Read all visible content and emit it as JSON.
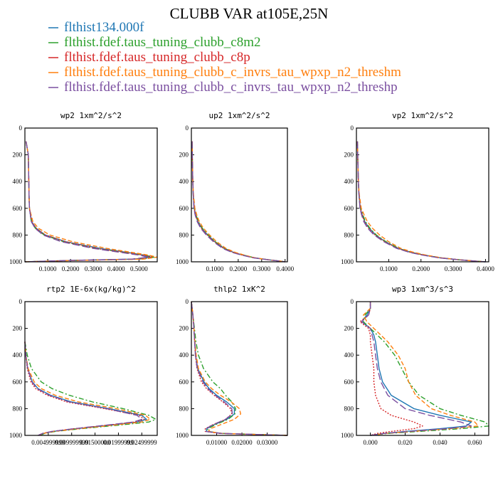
{
  "figure": {
    "title": "CLUBB VAR at105E,25N"
  },
  "legend": [
    {
      "label": "flthist134.000f",
      "color": "#1f77b4",
      "dash": "solid"
    },
    {
      "label": "flthist.fdef.taus_tuning_clubb_c8m2",
      "color": "#2ca02c",
      "dash": "dashdot"
    },
    {
      "label": "flthist.fdef.taus_tuning_clubb_c8p",
      "color": "#d62728",
      "dash": "dotted"
    },
    {
      "label": "flthist.fdef.taus_tuning_clubb_c_invrs_tau_wpxp_n2_threshm",
      "color": "#ff7f0e",
      "dash": "dashed"
    },
    {
      "label": "flthist.fdef.taus_tuning_clubb_c_invrs_tau_wpxp_n2_threshp",
      "color": "#7b4fa0",
      "dash": "longdash"
    }
  ],
  "colors": {
    "axis": "#000000",
    "background": "#ffffff"
  },
  "chart_data": [
    {
      "type": "line",
      "title": "wp2  1xm^2/s^2",
      "xlim": [
        0,
        0.58
      ],
      "ylim": [
        1000,
        0
      ],
      "xticks": [
        0.1,
        0.2,
        0.3,
        0.4,
        0.5
      ],
      "xtick_labels": [
        "0.1000",
        "0.2000",
        "0.3000",
        "0.4000",
        "0.5000"
      ],
      "yticks": [
        0,
        200,
        400,
        600,
        800,
        1000
      ],
      "ytick_labels": [
        "0",
        "200",
        "400",
        "600",
        "800",
        "1000"
      ],
      "y": [
        100,
        150,
        200,
        300,
        400,
        500,
        600,
        700,
        750,
        800,
        850,
        900,
        930,
        950,
        965,
        980,
        990,
        1000
      ],
      "series": [
        {
          "name": "flthist134.000f",
          "x": [
            0.005,
            0.01,
            0.015,
            0.016,
            0.017,
            0.018,
            0.02,
            0.03,
            0.05,
            0.09,
            0.18,
            0.33,
            0.45,
            0.52,
            0.55,
            0.48,
            0.2,
            0.0
          ]
        },
        {
          "name": "flthist.fdef.taus_tuning_clubb_c8m2",
          "x": [
            0.005,
            0.01,
            0.015,
            0.016,
            0.017,
            0.018,
            0.02,
            0.028,
            0.046,
            0.085,
            0.17,
            0.31,
            0.44,
            0.52,
            0.57,
            0.5,
            0.22,
            0.0
          ]
        },
        {
          "name": "flthist.fdef.taus_tuning_clubb_c8p",
          "x": [
            0.005,
            0.01,
            0.015,
            0.016,
            0.017,
            0.018,
            0.02,
            0.03,
            0.05,
            0.09,
            0.18,
            0.32,
            0.44,
            0.52,
            0.56,
            0.5,
            0.2,
            0.0
          ]
        },
        {
          "name": "flthist.fdef.taus_tuning_clubb_c_invrs_tau_wpxp_n2_threshm",
          "x": [
            0.005,
            0.01,
            0.015,
            0.016,
            0.017,
            0.018,
            0.02,
            0.035,
            0.06,
            0.11,
            0.21,
            0.36,
            0.47,
            0.54,
            0.58,
            0.52,
            0.22,
            0.0
          ]
        },
        {
          "name": "flthist.fdef.taus_tuning_clubb_c_invrs_tau_wpxp_n2_threshp",
          "x": [
            0.005,
            0.01,
            0.015,
            0.016,
            0.017,
            0.018,
            0.02,
            0.028,
            0.045,
            0.08,
            0.16,
            0.3,
            0.42,
            0.5,
            0.54,
            0.47,
            0.2,
            0.0
          ]
        }
      ]
    },
    {
      "type": "line",
      "title": "up2  1xm^2/s^2",
      "xlim": [
        0,
        0.41
      ],
      "ylim": [
        1000,
        0
      ],
      "xticks": [
        0.1,
        0.2,
        0.3,
        0.4
      ],
      "xtick_labels": [
        "0.1000",
        "0.2000",
        "0.3000",
        "0.4000"
      ],
      "yticks": [
        0,
        200,
        400,
        600,
        800,
        1000
      ],
      "ytick_labels": [
        "0",
        "200",
        "400",
        "600",
        "800",
        "1000"
      ],
      "y": [
        100,
        200,
        300,
        400,
        500,
        600,
        650,
        700,
        750,
        800,
        850,
        900,
        930,
        950,
        970,
        985,
        995,
        1000
      ],
      "series": [
        {
          "name": "flthist134.000f",
          "x": [
            0.003,
            0.004,
            0.005,
            0.006,
            0.008,
            0.012,
            0.018,
            0.028,
            0.045,
            0.07,
            0.1,
            0.14,
            0.18,
            0.22,
            0.27,
            0.33,
            0.38,
            0.4
          ]
        },
        {
          "name": "flthist.fdef.taus_tuning_clubb_c8m2",
          "x": [
            0.003,
            0.004,
            0.005,
            0.006,
            0.008,
            0.013,
            0.02,
            0.03,
            0.047,
            0.072,
            0.102,
            0.142,
            0.182,
            0.222,
            0.27,
            0.33,
            0.38,
            0.4
          ]
        },
        {
          "name": "flthist.fdef.taus_tuning_clubb_c8p",
          "x": [
            0.003,
            0.004,
            0.005,
            0.006,
            0.008,
            0.012,
            0.018,
            0.027,
            0.043,
            0.068,
            0.098,
            0.138,
            0.178,
            0.218,
            0.268,
            0.33,
            0.38,
            0.4
          ]
        },
        {
          "name": "flthist.fdef.taus_tuning_clubb_c_invrs_tau_wpxp_n2_threshm",
          "x": [
            0.003,
            0.004,
            0.005,
            0.006,
            0.009,
            0.015,
            0.023,
            0.034,
            0.052,
            0.078,
            0.108,
            0.148,
            0.188,
            0.226,
            0.272,
            0.33,
            0.38,
            0.4
          ]
        },
        {
          "name": "flthist.fdef.taus_tuning_clubb_c_invrs_tau_wpxp_n2_threshp",
          "x": [
            0.003,
            0.004,
            0.005,
            0.006,
            0.008,
            0.011,
            0.016,
            0.025,
            0.04,
            0.064,
            0.094,
            0.134,
            0.174,
            0.214,
            0.265,
            0.33,
            0.38,
            0.4
          ]
        }
      ]
    },
    {
      "type": "line",
      "title": "vp2  1xm^2/s^2",
      "xlim": [
        0,
        0.41
      ],
      "ylim": [
        1000,
        0
      ],
      "xticks": [
        0.1,
        0.2,
        0.3,
        0.4
      ],
      "xtick_labels": [
        "0.1000",
        "0.2000",
        "0.3000",
        "0.4000"
      ],
      "yticks": [
        0,
        200,
        400,
        600,
        800,
        1000
      ],
      "ytick_labels": [
        "0",
        "200",
        "400",
        "600",
        "800",
        "1000"
      ],
      "y": [
        100,
        200,
        300,
        400,
        500,
        600,
        650,
        700,
        750,
        800,
        850,
        900,
        930,
        950,
        970,
        985,
        995,
        1000
      ],
      "series": [
        {
          "name": "flthist134.000f",
          "x": [
            0.003,
            0.004,
            0.005,
            0.006,
            0.008,
            0.012,
            0.018,
            0.026,
            0.04,
            0.06,
            0.09,
            0.13,
            0.17,
            0.21,
            0.26,
            0.32,
            0.37,
            0.4
          ]
        },
        {
          "name": "flthist.fdef.taus_tuning_clubb_c8m2",
          "x": [
            0.003,
            0.004,
            0.005,
            0.006,
            0.008,
            0.013,
            0.02,
            0.028,
            0.042,
            0.062,
            0.092,
            0.132,
            0.172,
            0.212,
            0.262,
            0.32,
            0.37,
            0.4
          ]
        },
        {
          "name": "flthist.fdef.taus_tuning_clubb_c8p",
          "x": [
            0.003,
            0.004,
            0.005,
            0.006,
            0.008,
            0.012,
            0.018,
            0.025,
            0.038,
            0.058,
            0.088,
            0.128,
            0.168,
            0.208,
            0.258,
            0.32,
            0.37,
            0.4
          ]
        },
        {
          "name": "flthist.fdef.taus_tuning_clubb_c_invrs_tau_wpxp_n2_threshm",
          "x": [
            0.003,
            0.004,
            0.005,
            0.006,
            0.009,
            0.015,
            0.024,
            0.034,
            0.05,
            0.072,
            0.1,
            0.138,
            0.178,
            0.216,
            0.264,
            0.32,
            0.37,
            0.4
          ]
        },
        {
          "name": "flthist.fdef.taus_tuning_clubb_c_invrs_tau_wpxp_n2_threshp",
          "x": [
            0.003,
            0.004,
            0.005,
            0.006,
            0.008,
            0.011,
            0.016,
            0.023,
            0.035,
            0.055,
            0.085,
            0.125,
            0.165,
            0.205,
            0.255,
            0.32,
            0.37,
            0.4
          ]
        }
      ]
    },
    {
      "type": "line",
      "title": "rtp2  1E-6x(kg/kg)^2",
      "xlim": [
        0,
        0.0283
      ],
      "ylim": [
        1000,
        0
      ],
      "xticks": [
        0.005,
        0.01,
        0.015,
        0.02,
        0.025
      ],
      "xtick_labels": [
        "0.004999999",
        "0.009999999",
        "0.01500000",
        "0.01999999",
        "0.02499999"
      ],
      "yticks": [
        0,
        200,
        400,
        600,
        800,
        1000
      ],
      "ytick_labels": [
        "0",
        "200",
        "400",
        "600",
        "800",
        "1000"
      ],
      "y": [
        300,
        400,
        500,
        600,
        650,
        700,
        750,
        800,
        850,
        880,
        900,
        920,
        950,
        970,
        985,
        1000
      ],
      "series": [
        {
          "name": "flthist134.000f",
          "x": [
            0.0,
            0.0002,
            0.0006,
            0.0016,
            0.0028,
            0.0055,
            0.01,
            0.018,
            0.025,
            0.026,
            0.024,
            0.019,
            0.011,
            0.006,
            0.004,
            0.003
          ]
        },
        {
          "name": "flthist.fdef.taus_tuning_clubb_c8m2",
          "x": [
            0.0,
            0.0005,
            0.0014,
            0.0035,
            0.0058,
            0.0095,
            0.0145,
            0.021,
            0.0265,
            0.028,
            0.0265,
            0.021,
            0.012,
            0.0065,
            0.0042,
            0.0032
          ]
        },
        {
          "name": "flthist.fdef.taus_tuning_clubb_c8p",
          "x": [
            0.0,
            0.0002,
            0.0005,
            0.0013,
            0.0023,
            0.0048,
            0.009,
            0.017,
            0.0245,
            0.0255,
            0.0235,
            0.0185,
            0.0105,
            0.0058,
            0.0038,
            0.0028
          ]
        },
        {
          "name": "flthist.fdef.taus_tuning_clubb_c_invrs_tau_wpxp_n2_threshm",
          "x": [
            0.0,
            0.0002,
            0.0007,
            0.002,
            0.0035,
            0.0065,
            0.0115,
            0.0195,
            0.0258,
            0.0268,
            0.025,
            0.0198,
            0.0115,
            0.0062,
            0.004,
            0.003
          ]
        },
        {
          "name": "flthist.fdef.taus_tuning_clubb_c_invrs_tau_wpxp_n2_threshp",
          "x": [
            0.0,
            0.0002,
            0.0006,
            0.0015,
            0.0026,
            0.0052,
            0.0095,
            0.0175,
            0.024,
            0.025,
            0.0232,
            0.0182,
            0.0105,
            0.0058,
            0.0038,
            0.0028
          ]
        }
      ]
    },
    {
      "type": "line",
      "title": "thlp2  1xK^2",
      "xlim": [
        0,
        0.038
      ],
      "ylim": [
        1000,
        0
      ],
      "xticks": [
        0.01,
        0.02,
        0.03
      ],
      "xtick_labels": [
        "0.01000",
        "0.02000",
        "0.03000"
      ],
      "yticks": [
        0,
        200,
        400,
        600,
        800,
        1000
      ],
      "ytick_labels": [
        "0",
        "200",
        "400",
        "600",
        "800",
        "1000"
      ],
      "y": [
        0,
        50,
        100,
        200,
        300,
        400,
        500,
        600,
        650,
        700,
        750,
        800,
        840,
        880,
        920,
        950,
        970,
        985,
        1000
      ],
      "series": [
        {
          "name": "flthist134.000f",
          "x": [
            0.0,
            0.0003,
            0.0006,
            0.001,
            0.0013,
            0.0017,
            0.0025,
            0.005,
            0.007,
            0.01,
            0.014,
            0.017,
            0.017,
            0.014,
            0.009,
            0.006,
            0.006,
            0.012,
            0.038
          ]
        },
        {
          "name": "flthist.fdef.taus_tuning_clubb_c8m2",
          "x": [
            0.0,
            0.0003,
            0.0006,
            0.0012,
            0.0018,
            0.0028,
            0.0048,
            0.0085,
            0.0115,
            0.0135,
            0.016,
            0.0175,
            0.0172,
            0.0145,
            0.0095,
            0.0065,
            0.0065,
            0.012,
            0.038
          ]
        },
        {
          "name": "flthist.fdef.taus_tuning_clubb_c8p",
          "x": [
            0.0,
            0.0003,
            0.0006,
            0.001,
            0.0013,
            0.0016,
            0.0022,
            0.004,
            0.006,
            0.009,
            0.0125,
            0.0155,
            0.016,
            0.0135,
            0.0085,
            0.0055,
            0.0055,
            0.011,
            0.038
          ]
        },
        {
          "name": "flthist.fdef.taus_tuning_clubb_c_invrs_tau_wpxp_n2_threshm",
          "x": [
            0.0,
            0.0003,
            0.0006,
            0.001,
            0.0014,
            0.0019,
            0.0028,
            0.0055,
            0.008,
            0.0115,
            0.0158,
            0.019,
            0.0195,
            0.017,
            0.0115,
            0.0075,
            0.0068,
            0.012,
            0.038
          ]
        },
        {
          "name": "flthist.fdef.taus_tuning_clubb_c_invrs_tau_wpxp_n2_threshp",
          "x": [
            0.0,
            0.0003,
            0.0006,
            0.001,
            0.0013,
            0.0016,
            0.0023,
            0.0046,
            0.0065,
            0.0094,
            0.013,
            0.016,
            0.0162,
            0.0135,
            0.0085,
            0.0058,
            0.0058,
            0.0115,
            0.038
          ]
        }
      ]
    },
    {
      "type": "line",
      "title": "wp3  1xm^3/s^3",
      "xlim": [
        -0.008,
        0.068
      ],
      "ylim": [
        1000,
        0
      ],
      "xticks": [
        0.0,
        0.02,
        0.04,
        0.06
      ],
      "xtick_labels": [
        "0.000",
        "0.020",
        "0.040",
        "0.060"
      ],
      "yticks": [
        0,
        200,
        400,
        600,
        800,
        1000
      ],
      "ytick_labels": [
        "0",
        "200",
        "400",
        "600",
        "800",
        "1000"
      ],
      "y": [
        0,
        50,
        100,
        150,
        200,
        250,
        300,
        400,
        500,
        600,
        700,
        800,
        850,
        900,
        930,
        950,
        970,
        985,
        1000
      ],
      "series": [
        {
          "name": "flthist134.000f",
          "x": [
            0.0,
            0.0,
            -0.002,
            -0.005,
            0.0,
            0.002,
            0.003,
            0.004,
            0.005,
            0.007,
            0.012,
            0.025,
            0.04,
            0.058,
            0.055,
            0.04,
            0.02,
            0.008,
            0.0
          ]
        },
        {
          "name": "flthist.fdef.taus_tuning_clubb_c8m2",
          "x": [
            0.0,
            0.0,
            -0.003,
            -0.004,
            0.0,
            0.004,
            0.008,
            0.014,
            0.018,
            0.022,
            0.028,
            0.04,
            0.052,
            0.066,
            0.068,
            0.052,
            0.028,
            0.01,
            0.0
          ]
        },
        {
          "name": "flthist.fdef.taus_tuning_clubb_c8p",
          "x": [
            0.0,
            0.0,
            -0.001,
            -0.006,
            -0.001,
            0.0,
            0.0,
            0.001,
            0.002,
            0.002,
            0.003,
            0.006,
            0.012,
            0.025,
            0.03,
            0.025,
            0.012,
            0.004,
            0.0
          ]
        },
        {
          "name": "flthist.fdef.taus_tuning_clubb_c_invrs_tau_wpxp_n2_threshm",
          "x": [
            0.0,
            0.0,
            -0.004,
            -0.002,
            0.002,
            0.006,
            0.01,
            0.016,
            0.02,
            0.022,
            0.026,
            0.035,
            0.046,
            0.06,
            0.062,
            0.046,
            0.024,
            0.009,
            0.0
          ]
        },
        {
          "name": "flthist.fdef.taus_tuning_clubb_c_invrs_tau_wpxp_n2_threshp",
          "x": [
            0.0,
            0.0,
            -0.001,
            -0.005,
            0.0,
            0.001,
            0.002,
            0.003,
            0.004,
            0.006,
            0.01,
            0.02,
            0.034,
            0.052,
            0.058,
            0.044,
            0.022,
            0.008,
            0.0
          ]
        }
      ]
    }
  ]
}
